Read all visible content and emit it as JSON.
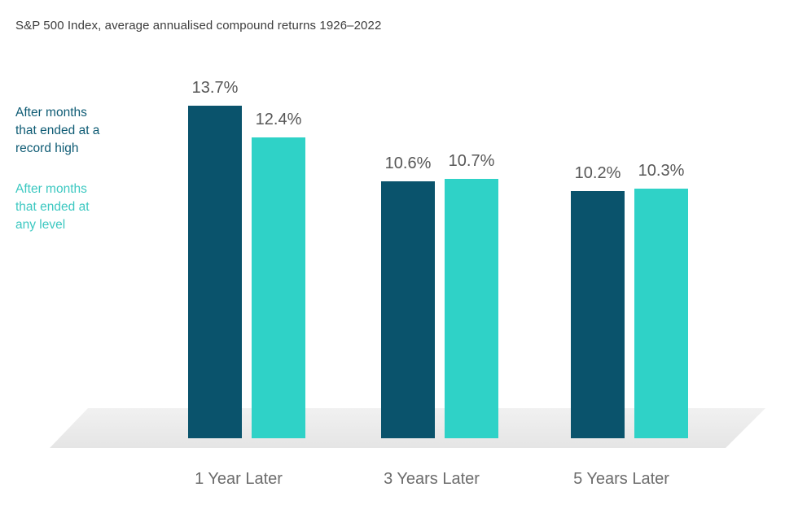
{
  "title": "S&P 500 Index, average annualised compound returns 1926–2022",
  "legend": {
    "items": [
      {
        "id": "record-high",
        "text": "After months\nthat ended at a\nrecord high",
        "color": "#0E5B74"
      },
      {
        "id": "any-level",
        "text": "After months\nthat ended at\nany level",
        "color": "#3CC8C1"
      }
    ]
  },
  "colors": {
    "bar_record_high": "#0A536C",
    "bar_any_level": "#2FD2C7",
    "value_label": "#575757",
    "category_label": "#6C6C6C",
    "floor": "#EAEAEA"
  },
  "chart_data": {
    "type": "bar",
    "title": "S&P 500 Index, average annualised compound returns 1926–2022",
    "categories": [
      "1 Year Later",
      "3 Years Later",
      "5 Years Later"
    ],
    "series": [
      {
        "name": "After months that ended at a record high",
        "color": "#0A536C",
        "values": [
          13.7,
          10.6,
          10.2
        ],
        "labels": [
          "13.7%",
          "10.6%",
          "10.2%"
        ]
      },
      {
        "name": "After months that ended at any level",
        "color": "#2FD2C7",
        "values": [
          12.4,
          10.7,
          10.3
        ],
        "labels": [
          "12.4%",
          "10.7%",
          "10.3%"
        ]
      }
    ],
    "unit": "%",
    "xlabel": "",
    "ylabel": "",
    "ylim": [
      0,
      14.5
    ],
    "grid": false,
    "axes_visible": false,
    "legend_position": "left"
  }
}
